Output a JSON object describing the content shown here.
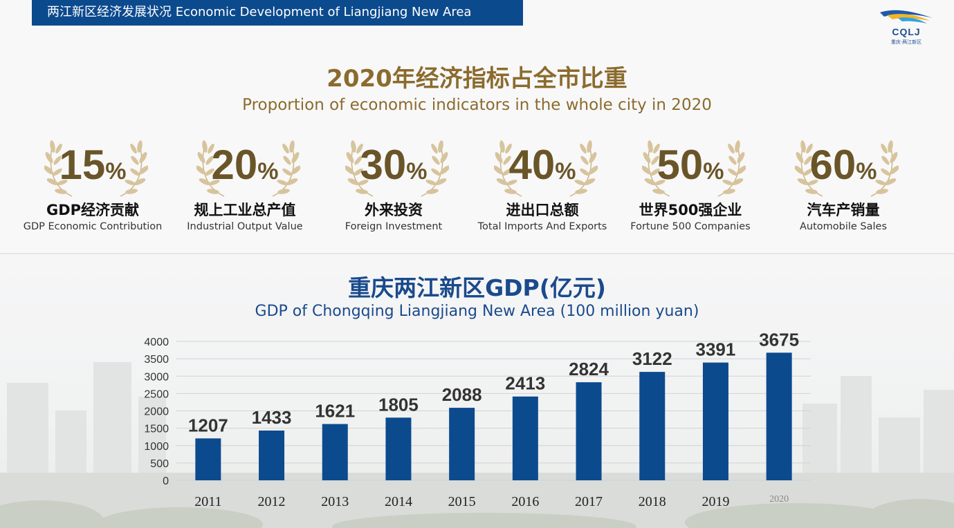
{
  "header": {
    "banner_text": "两江新区经济发展状况 Economic Development of Liangjiang New Area"
  },
  "logo": {
    "text": "CQLJ",
    "subtext": "重庆·两江新区"
  },
  "colors": {
    "banner": "#0c4a8e",
    "gold_title": "#8b6b2d",
    "blue_title": "#1a4a8c",
    "bar": "#0c4a8e",
    "percent_text": "#6a5528"
  },
  "section1": {
    "title_zh": "2020年经济指标占全市比重",
    "title_en": "Proportion of economic indicators in the whole city in 2020"
  },
  "indicators": [
    {
      "value": "15",
      "unit": "%",
      "label_zh": "GDP经济贡献",
      "label_en": "GDP Economic Contribution"
    },
    {
      "value": "20",
      "unit": "%",
      "label_zh": "规上工业总产值",
      "label_en": "Industrial Output Value"
    },
    {
      "value": "30",
      "unit": "%",
      "label_zh": "外来投资",
      "label_en": "Foreign Investment"
    },
    {
      "value": "40",
      "unit": "%",
      "label_zh": "进出口总额",
      "label_en": "Total Imports And Exports"
    },
    {
      "value": "50",
      "unit": "%",
      "label_zh": "世界500强企业",
      "label_en": "Fortune 500 Companies"
    },
    {
      "value": "60",
      "unit": "%",
      "label_zh": "汽车产销量",
      "label_en": "Automobile Sales"
    }
  ],
  "section2": {
    "title_zh": "重庆两江新区GDP(亿元)",
    "title_en": "GDP of Chongqing Liangjiang New Area (100 million yuan)"
  },
  "chart_data": {
    "type": "bar",
    "categories": [
      "2011",
      "2012",
      "2013",
      "2014",
      "2015",
      "2016",
      "2017",
      "2018",
      "2019",
      "2020"
    ],
    "values": [
      1207,
      1433,
      1621,
      1805,
      2088,
      2413,
      2824,
      3122,
      3391,
      3675
    ],
    "ylim": [
      0,
      4000
    ],
    "yticks": [
      0,
      500,
      1000,
      1500,
      2000,
      2500,
      3000,
      3500,
      4000
    ],
    "grid": true,
    "legend": "none"
  }
}
